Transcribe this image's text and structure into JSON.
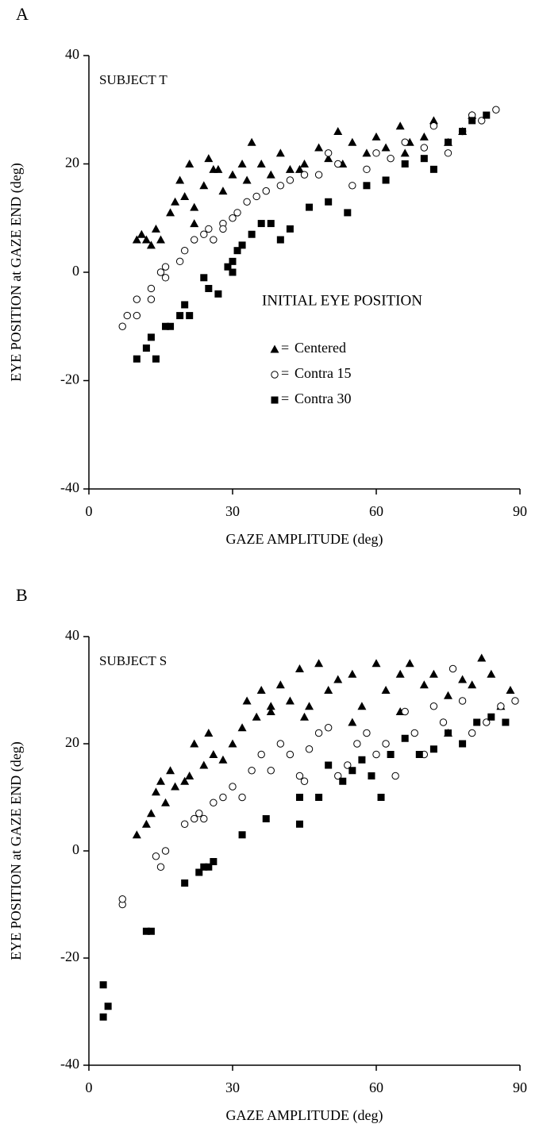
{
  "chart_data": [
    {
      "type": "scatter",
      "panel_label": "A",
      "title": "SUBJECT T",
      "xlabel": "GAZE AMPLITUDE (deg)",
      "ylabel": "EYE POSITION at GAZE END (deg)",
      "xlim": [
        0,
        90
      ],
      "ylim": [
        -40,
        40
      ],
      "xticks": [
        0,
        30,
        60,
        90
      ],
      "yticks": [
        -40,
        -20,
        0,
        20,
        40
      ],
      "legend_title": "INITIAL EYE POSITION",
      "legend_separator": "=",
      "series": [
        {
          "name": "Centered",
          "marker": "triangle",
          "color": "#000000",
          "x": [
            10,
            11,
            12,
            13,
            14,
            15,
            17,
            18,
            19,
            20,
            21,
            22,
            24,
            25,
            27,
            28,
            30,
            32,
            34,
            36,
            38,
            40,
            42,
            45,
            48,
            50,
            53,
            55,
            58,
            60,
            62,
            65,
            67,
            70,
            72,
            75,
            78,
            80,
            33,
            44,
            52,
            66,
            22,
            26
          ],
          "values": [
            6,
            7,
            6,
            5,
            8,
            6,
            11,
            13,
            17,
            14,
            20,
            12,
            16,
            21,
            19,
            15,
            18,
            20,
            24,
            20,
            18,
            22,
            19,
            20,
            23,
            21,
            20,
            24,
            22,
            25,
            23,
            27,
            24,
            25,
            28,
            24,
            26,
            29,
            17,
            19,
            26,
            22,
            9,
            19
          ]
        },
        {
          "name": "Contra 15",
          "marker": "circle-open",
          "color": "#000000",
          "x": [
            7,
            8,
            10,
            10,
            13,
            13,
            15,
            16,
            16,
            19,
            20,
            22,
            24,
            25,
            26,
            28,
            30,
            31,
            33,
            35,
            37,
            40,
            42,
            45,
            48,
            52,
            55,
            58,
            60,
            63,
            66,
            70,
            72,
            75,
            78,
            80,
            82,
            85,
            28,
            50
          ],
          "values": [
            -10,
            -8,
            -5,
            -8,
            -3,
            -5,
            0,
            1,
            -1,
            2,
            4,
            6,
            7,
            8,
            6,
            9,
            10,
            11,
            13,
            14,
            15,
            16,
            17,
            18,
            18,
            20,
            16,
            19,
            22,
            21,
            24,
            23,
            27,
            22,
            26,
            29,
            28,
            30,
            8,
            22
          ]
        },
        {
          "name": "Contra 30",
          "marker": "square",
          "color": "#000000",
          "x": [
            10,
            12,
            13,
            14,
            16,
            17,
            19,
            20,
            21,
            24,
            25,
            27,
            29,
            30,
            31,
            32,
            34,
            36,
            38,
            40,
            42,
            46,
            50,
            54,
            58,
            62,
            66,
            70,
            72,
            75,
            78,
            80,
            83,
            30
          ],
          "values": [
            -16,
            -14,
            -12,
            -16,
            -10,
            -10,
            -8,
            -6,
            -8,
            -1,
            -3,
            -4,
            1,
            2,
            4,
            5,
            7,
            9,
            9,
            6,
            8,
            12,
            13,
            11,
            16,
            17,
            20,
            21,
            19,
            24,
            26,
            28,
            29,
            0
          ]
        }
      ]
    },
    {
      "type": "scatter",
      "panel_label": "B",
      "title": "SUBJECT S",
      "xlabel": "GAZE AMPLITUDE (deg)",
      "ylabel": "EYE POSITION at GAZE END (deg)",
      "xlim": [
        0,
        90
      ],
      "ylim": [
        -40,
        40
      ],
      "xticks": [
        0,
        30,
        60,
        90
      ],
      "yticks": [
        -40,
        -20,
        0,
        20,
        40
      ],
      "series": [
        {
          "marker": "triangle",
          "color": "#000000",
          "x": [
            10,
            12,
            13,
            14,
            15,
            16,
            17,
            18,
            20,
            21,
            22,
            24,
            25,
            26,
            28,
            30,
            32,
            33,
            35,
            36,
            38,
            40,
            42,
            44,
            46,
            48,
            50,
            52,
            55,
            57,
            60,
            62,
            65,
            67,
            70,
            72,
            75,
            78,
            80,
            82,
            84,
            86,
            88,
            45,
            55,
            65,
            75,
            38
          ],
          "values": [
            3,
            5,
            7,
            11,
            13,
            9,
            15,
            12,
            13,
            14,
            20,
            16,
            22,
            18,
            17,
            20,
            23,
            28,
            25,
            30,
            26,
            31,
            28,
            34,
            27,
            35,
            30,
            32,
            33,
            27,
            35,
            30,
            33,
            35,
            31,
            33,
            29,
            32,
            31,
            36,
            33,
            27,
            30,
            25,
            24,
            26,
            22,
            27
          ]
        },
        {
          "marker": "circle-open",
          "color": "#000000",
          "x": [
            7,
            7,
            14,
            15,
            16,
            20,
            22,
            23,
            24,
            26,
            28,
            30,
            32,
            34,
            36,
            38,
            40,
            42,
            44,
            46,
            48,
            50,
            52,
            54,
            56,
            58,
            60,
            62,
            64,
            66,
            68,
            70,
            72,
            74,
            76,
            78,
            80,
            83,
            86,
            89,
            45
          ],
          "values": [
            -10,
            -9,
            -1,
            -3,
            0,
            5,
            6,
            7,
            6,
            9,
            10,
            12,
            10,
            15,
            18,
            15,
            20,
            18,
            14,
            19,
            22,
            23,
            14,
            16,
            20,
            22,
            18,
            20,
            14,
            26,
            22,
            18,
            27,
            24,
            34,
            28,
            22,
            24,
            27,
            28,
            13
          ]
        },
        {
          "marker": "square",
          "color": "#000000",
          "x": [
            3,
            3,
            4,
            12,
            13,
            20,
            23,
            24,
            25,
            26,
            32,
            37,
            44,
            44,
            48,
            50,
            53,
            55,
            57,
            59,
            61,
            63,
            66,
            69,
            72,
            75,
            78,
            81,
            84,
            87
          ],
          "values": [
            -25,
            -31,
            -29,
            -15,
            -15,
            -6,
            -4,
            -3,
            -3,
            -2,
            3,
            6,
            5,
            10,
            10,
            16,
            13,
            15,
            17,
            14,
            10,
            18,
            21,
            18,
            19,
            22,
            20,
            24,
            25,
            24
          ]
        }
      ]
    }
  ]
}
